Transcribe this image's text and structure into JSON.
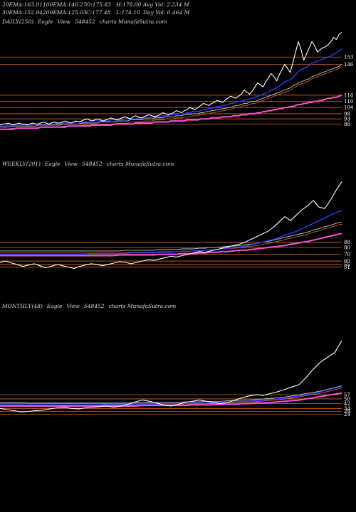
{
  "header": {
    "row1": [
      {
        "label": "20EMA:",
        "value": "163.01"
      },
      {
        "label": "100EMA:",
        "value": "146.27"
      },
      {
        "label": "O:",
        "value": "175.83"
      },
      {
        "label": "H:",
        "value": "178.00"
      },
      {
        "label": "Avg Vol:",
        "value": "2.234",
        "unit": "M"
      }
    ],
    "row2": [
      {
        "label": "30EMA:",
        "value": "152.94"
      },
      {
        "label": "200EMA:",
        "value": "125.03"
      },
      {
        "label": "C:",
        "value": "177.48"
      },
      {
        "label": "L:",
        "value": "174.10"
      },
      {
        "label": "Day Vol:",
        "value": "0.464",
        "unit": "M"
      }
    ]
  },
  "colors": {
    "background": "#000000",
    "price": "#ffffff",
    "ema_short": "#2a3cff",
    "ema_mid": "#c8c8c8",
    "ema_long": "#ff4fd8",
    "ema_slow": "#e0722a",
    "level_line": "#d46a1a"
  },
  "chart_data": [
    {
      "type": "line",
      "name": "DAILY",
      "title": {
        "period": "DAILY(250)",
        "source": "Eagle",
        "view": "View",
        "symbol": "548452",
        "site": "charts MunafaSutra.com"
      },
      "ylim": [
        80,
        178
      ],
      "levels": [
        153,
        146,
        116,
        110,
        104,
        98,
        93,
        88
      ],
      "level_labels": [
        "153",
        "146",
        "116",
        "110",
        "104",
        "98",
        "93",
        "88"
      ],
      "series": [
        {
          "key": "price",
          "values": [
            87,
            88,
            88,
            89,
            88,
            87,
            88,
            89,
            88,
            88,
            87,
            88,
            89,
            88,
            88,
            89,
            90,
            89,
            88,
            89,
            90,
            89,
            89,
            90,
            91,
            90,
            89,
            90,
            91,
            90,
            91,
            92,
            93,
            92,
            91,
            92,
            93,
            92,
            91,
            92,
            93,
            94,
            93,
            92,
            93,
            94,
            95,
            94,
            93,
            95,
            96,
            95,
            94,
            95,
            96,
            97,
            96,
            95,
            96,
            97,
            99,
            98,
            97,
            98,
            99,
            101,
            100,
            99,
            101,
            102,
            104,
            103,
            102,
            104,
            106,
            108,
            107,
            106,
            108,
            109,
            111,
            110,
            109,
            111,
            113,
            115,
            114,
            113,
            115,
            117,
            121,
            119,
            117,
            120,
            124,
            128,
            126,
            124,
            129,
            133,
            137,
            134,
            130,
            136,
            141,
            146,
            142,
            138,
            148,
            158,
            168,
            160,
            150,
            156,
            162,
            168,
            164,
            158,
            160,
            162,
            163,
            165,
            168,
            172,
            170,
            175,
            177
          ]
        },
        {
          "key": "ema_short",
          "values": [
            86,
            86,
            86,
            87,
            87,
            87,
            87,
            87,
            87,
            87,
            87,
            87,
            87,
            88,
            88,
            88,
            88,
            88,
            88,
            88,
            88,
            89,
            89,
            89,
            89,
            89,
            89,
            89,
            90,
            90,
            90,
            90,
            90,
            91,
            91,
            91,
            91,
            91,
            91,
            91,
            91,
            92,
            92,
            92,
            92,
            92,
            93,
            93,
            93,
            93,
            93,
            94,
            94,
            94,
            94,
            94,
            95,
            95,
            95,
            95,
            96,
            96,
            96,
            97,
            97,
            97,
            98,
            98,
            98,
            99,
            99,
            100,
            100,
            100,
            101,
            102,
            102,
            103,
            103,
            104,
            105,
            105,
            106,
            106,
            107,
            108,
            108,
            109,
            110,
            110,
            111,
            112,
            112,
            113,
            114,
            115,
            116,
            117,
            118,
            119,
            121,
            122,
            123,
            125,
            127,
            129,
            130,
            131,
            133,
            136,
            139,
            141,
            142,
            143,
            145,
            147,
            148,
            149,
            150,
            151,
            152,
            153,
            154,
            156,
            157,
            159,
            161
          ]
        },
        {
          "key": "ema_mid",
          "values": [
            85,
            85,
            85,
            85,
            86,
            86,
            86,
            86,
            86,
            86,
            86,
            86,
            86,
            86,
            87,
            87,
            87,
            87,
            87,
            87,
            87,
            87,
            87,
            88,
            88,
            88,
            88,
            88,
            88,
            88,
            89,
            89,
            89,
            89,
            89,
            89,
            89,
            90,
            90,
            90,
            90,
            90,
            90,
            91,
            91,
            91,
            91,
            91,
            92,
            92,
            92,
            92,
            92,
            93,
            93,
            93,
            93,
            94,
            94,
            94,
            94,
            95,
            95,
            95,
            95,
            96,
            96,
            96,
            97,
            97,
            97,
            98,
            98,
            98,
            99,
            99,
            100,
            100,
            101,
            101,
            102,
            102,
            103,
            103,
            104,
            104,
            105,
            106,
            106,
            107,
            108,
            108,
            109,
            110,
            110,
            111,
            112,
            113,
            114,
            115,
            116,
            117,
            118,
            119,
            120,
            121,
            122,
            123,
            125,
            126,
            128,
            129,
            130,
            131,
            132,
            134,
            135,
            136,
            137,
            138,
            139,
            140,
            141,
            142,
            143,
            144,
            146
          ]
        },
        {
          "key": "ema_long",
          "values": [
            83,
            83,
            83,
            83,
            83,
            83,
            84,
            84,
            84,
            84,
            84,
            84,
            84,
            84,
            84,
            85,
            85,
            85,
            85,
            85,
            85,
            85,
            85,
            85,
            85,
            86,
            86,
            86,
            86,
            86,
            86,
            86,
            86,
            86,
            87,
            87,
            87,
            87,
            87,
            87,
            87,
            87,
            88,
            88,
            88,
            88,
            88,
            88,
            88,
            88,
            89,
            89,
            89,
            89,
            89,
            89,
            89,
            90,
            90,
            90,
            90,
            90,
            90,
            91,
            91,
            91,
            91,
            91,
            91,
            92,
            92,
            92,
            92,
            92,
            93,
            93,
            93,
            93,
            94,
            94,
            94,
            94,
            95,
            95,
            95,
            95,
            96,
            96,
            96,
            97,
            97,
            97,
            98,
            98,
            98,
            99,
            99,
            100,
            100,
            101,
            101,
            102,
            102,
            103,
            103,
            104,
            104,
            105,
            105,
            106,
            107,
            107,
            108,
            108,
            109,
            109,
            110,
            110,
            111,
            111,
            112,
            113,
            113,
            114,
            114,
            115,
            116
          ]
        }
      ]
    },
    {
      "type": "line",
      "name": "WEEKLY",
      "title": {
        "period": "WEEKLY(201)",
        "source": "Eagle",
        "view": "View",
        "symbol": "548452",
        "site": "charts MunafaSutra.com"
      },
      "ylim": [
        40,
        190
      ],
      "levels": [
        88,
        80,
        70,
        60,
        55,
        51
      ],
      "level_labels": [
        "88",
        "80",
        "70",
        "60",
        "55",
        "51"
      ],
      "series": [
        {
          "key": "price",
          "values": [
            58,
            60,
            57,
            55,
            52,
            54,
            56,
            53,
            50,
            52,
            55,
            53,
            51,
            49,
            52,
            54,
            56,
            55,
            53,
            55,
            57,
            59,
            58,
            56,
            58,
            60,
            62,
            61,
            63,
            65,
            67,
            66,
            68,
            70,
            72,
            74,
            73,
            75,
            77,
            79,
            81,
            83,
            85,
            88,
            92,
            96,
            100,
            104,
            110,
            118,
            126,
            120,
            128,
            136,
            142,
            150,
            140,
            138,
            150,
            165,
            178
          ]
        },
        {
          "key": "ema_short",
          "values": [
            70,
            70,
            70,
            70,
            70,
            70,
            70,
            70,
            70,
            70,
            70,
            70,
            70,
            70,
            70,
            70,
            71,
            71,
            71,
            71,
            71,
            71,
            71,
            72,
            72,
            72,
            72,
            72,
            73,
            73,
            73,
            74,
            74,
            74,
            75,
            75,
            76,
            76,
            77,
            78,
            79,
            80,
            81,
            82,
            84,
            86,
            88,
            90,
            92,
            95,
            98,
            101,
            104,
            108,
            112,
            116,
            120,
            124,
            128,
            132,
            135
          ]
        },
        {
          "key": "ema_mid",
          "values": [
            75,
            75,
            75,
            75,
            75,
            75,
            75,
            75,
            75,
            75,
            75,
            75,
            75,
            75,
            75,
            75,
            75,
            75,
            75,
            75,
            75,
            75,
            76,
            76,
            76,
            76,
            76,
            76,
            77,
            77,
            77,
            77,
            78,
            78,
            78,
            79,
            79,
            80,
            80,
            81,
            82,
            82,
            83,
            84,
            85,
            86,
            88,
            89,
            91,
            93,
            95,
            97,
            99,
            101,
            103,
            106,
            108,
            111,
            113,
            116,
            118
          ]
        },
        {
          "key": "ema_long",
          "values": [
            68,
            68,
            68,
            68,
            68,
            68,
            68,
            68,
            68,
            68,
            68,
            68,
            68,
            68,
            68,
            68,
            68,
            68,
            68,
            68,
            68,
            69,
            69,
            69,
            69,
            69,
            69,
            69,
            70,
            70,
            70,
            70,
            71,
            71,
            71,
            72,
            72,
            73,
            73,
            74,
            74,
            75,
            76,
            76,
            77,
            78,
            79,
            80,
            81,
            82,
            83,
            85,
            86,
            88,
            89,
            91,
            93,
            95,
            97,
            99,
            101
          ]
        }
      ]
    },
    {
      "type": "line",
      "name": "MONTHLY",
      "title": {
        "period": "MONTHLY(48)",
        "source": "Eagle",
        "view": "View",
        "symbol": "548452",
        "site": "charts MunafaSutra.com"
      },
      "ylim": [
        20,
        190
      ],
      "levels": [
        57,
        50,
        42,
        34,
        29,
        24
      ],
      "level_labels": [
        "57",
        "50",
        "42",
        "34",
        "29",
        "24"
      ],
      "series": [
        {
          "key": "price",
          "values": [
            34,
            32,
            30,
            28,
            29,
            30,
            31,
            33,
            35,
            36,
            34,
            33,
            35,
            36,
            37,
            38,
            36,
            38,
            41,
            45,
            48,
            46,
            43,
            40,
            38,
            41,
            44,
            46,
            48,
            46,
            44,
            42,
            44,
            48,
            52,
            55,
            57,
            56,
            59,
            62,
            66,
            70,
            74,
            86,
            100,
            112,
            120,
            128,
            148
          ]
        },
        {
          "key": "ema_short",
          "values": [
            40,
            40,
            40,
            40,
            40,
            40,
            40,
            40,
            40,
            40,
            40,
            40,
            40,
            40,
            40,
            41,
            41,
            41,
            41,
            41,
            41,
            41,
            41,
            42,
            42,
            42,
            42,
            43,
            43,
            43,
            44,
            44,
            45,
            45,
            46,
            46,
            47,
            48,
            49,
            50,
            51,
            53,
            55,
            57,
            59,
            62,
            65,
            68,
            71
          ]
        },
        {
          "key": "ema_mid",
          "values": [
            44,
            44,
            44,
            44,
            43,
            43,
            43,
            43,
            43,
            43,
            43,
            43,
            43,
            43,
            43,
            43,
            43,
            43,
            43,
            44,
            44,
            44,
            44,
            44,
            44,
            44,
            45,
            45,
            45,
            46,
            46,
            46,
            47,
            47,
            48,
            48,
            49,
            50,
            51,
            52,
            53,
            55,
            57,
            59,
            61,
            63,
            66,
            69,
            72
          ]
        },
        {
          "key": "ema_long",
          "values": [
            38,
            38,
            38,
            38,
            38,
            38,
            38,
            38,
            38,
            38,
            38,
            38,
            38,
            38,
            38,
            38,
            38,
            38,
            38,
            38,
            39,
            39,
            39,
            39,
            39,
            39,
            39,
            40,
            40,
            40,
            40,
            41,
            41,
            41,
            42,
            42,
            43,
            43,
            44,
            45,
            46,
            47,
            48,
            50,
            52,
            54,
            56,
            58,
            60
          ]
        }
      ]
    }
  ]
}
